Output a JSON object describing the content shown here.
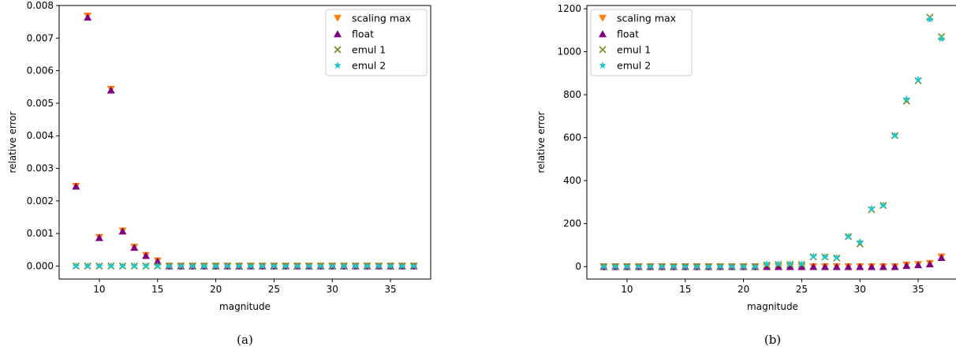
{
  "colors": {
    "scaling max": "#ff7f0e",
    "float": "#800080",
    "emul 1": "#6b8e23",
    "emul 2": "#1cc8cc"
  },
  "markers": {
    "scaling max": "triangle-down",
    "float": "triangle-up",
    "emul 1": "x",
    "emul 2": "star"
  },
  "chart_data": [
    {
      "type": "scatter",
      "caption": "(a)",
      "xlabel": "magnitude",
      "ylabel": "relative error",
      "xlim": [
        6.55,
        38.45
      ],
      "ylim": [
        -0.0004,
        0.008
      ],
      "xticks": [
        10,
        15,
        20,
        25,
        30,
        35
      ],
      "yticks": [
        0.0,
        0.001,
        0.002,
        0.003,
        0.004,
        0.005,
        0.006,
        0.007,
        0.008
      ],
      "ytick_labels": [
        "0.000",
        "0.001",
        "0.002",
        "0.003",
        "0.004",
        "0.005",
        "0.006",
        "0.007",
        "0.008"
      ],
      "legend_position": "top-right",
      "grid": false,
      "x": [
        8,
        9,
        10,
        11,
        12,
        13,
        14,
        15,
        16,
        17,
        18,
        19,
        20,
        21,
        22,
        23,
        24,
        25,
        26,
        27,
        28,
        29,
        30,
        31,
        32,
        33,
        34,
        35,
        36,
        37
      ],
      "series": [
        {
          "name": "scaling max",
          "values": [
            0.00245,
            0.00768,
            0.00088,
            0.00543,
            0.00108,
            0.00058,
            0.00033,
            0.00016,
            0,
            0,
            0,
            0,
            0,
            0,
            0,
            0,
            0,
            0,
            0,
            0,
            0,
            0,
            0,
            0,
            0,
            0,
            0,
            0,
            0,
            0
          ]
        },
        {
          "name": "float",
          "values": [
            0.00245,
            0.00764,
            0.00087,
            0.0054,
            0.00107,
            0.00057,
            0.00032,
            0.00015,
            0,
            0,
            0,
            0,
            0,
            0,
            0,
            0,
            0,
            0,
            0,
            0,
            0,
            0,
            0,
            0,
            0,
            0,
            0,
            0,
            0,
            0
          ]
        },
        {
          "name": "emul 1",
          "values": [
            0,
            0,
            0,
            0,
            0,
            0,
            0,
            0,
            0,
            0,
            0,
            0,
            0,
            0,
            0,
            0,
            0,
            0,
            0,
            0,
            0,
            0,
            0,
            0,
            0,
            0,
            0,
            0,
            0,
            0
          ]
        },
        {
          "name": "emul 2",
          "values": [
            0,
            0,
            0,
            0,
            0,
            0,
            0,
            0,
            0,
            0,
            0,
            0,
            0,
            0,
            0,
            0,
            0,
            0,
            0,
            0,
            0,
            0,
            0,
            0,
            0,
            0,
            0,
            0,
            0,
            0
          ]
        }
      ]
    },
    {
      "type": "scatter",
      "caption": "(b)",
      "xlabel": "magnitude",
      "ylabel": "relative error",
      "xlim": [
        6.55,
        38.45
      ],
      "ylim": [
        -58,
        1215
      ],
      "xticks": [
        10,
        15,
        20,
        25,
        30,
        35
      ],
      "yticks": [
        0,
        200,
        400,
        600,
        800,
        1000,
        1200
      ],
      "ytick_labels": [
        "0",
        "200",
        "400",
        "600",
        "800",
        "1000",
        "1200"
      ],
      "legend_position": "top-left",
      "grid": false,
      "x": [
        8,
        9,
        10,
        11,
        12,
        13,
        14,
        15,
        16,
        17,
        18,
        19,
        20,
        21,
        22,
        23,
        24,
        25,
        26,
        27,
        28,
        29,
        30,
        31,
        32,
        33,
        34,
        35,
        36,
        37
      ],
      "series": [
        {
          "name": "scaling max",
          "values": [
            0,
            0,
            0,
            0,
            0,
            0,
            0,
            0,
            0,
            0,
            0,
            0,
            0,
            0,
            0,
            0,
            0,
            0,
            0,
            0,
            0,
            0,
            0,
            0,
            0,
            0,
            8,
            10,
            15,
            45
          ]
        },
        {
          "name": "float",
          "values": [
            0,
            0,
            0,
            0,
            0,
            0,
            0,
            0,
            0,
            0,
            0,
            0,
            0,
            0,
            0,
            0,
            0,
            0,
            0,
            0,
            0,
            0,
            0,
            0,
            0,
            0,
            5,
            8,
            12,
            42
          ]
        },
        {
          "name": "emul 1",
          "values": [
            0,
            0,
            0,
            0,
            0,
            0,
            0,
            0,
            0,
            0,
            0,
            0,
            0,
            0,
            8,
            10,
            10,
            10,
            45,
            45,
            40,
            140,
            105,
            265,
            285,
            610,
            770,
            865,
            1160,
            1070
          ]
        },
        {
          "name": "emul 2",
          "values": [
            0,
            0,
            0,
            0,
            0,
            0,
            0,
            0,
            0,
            0,
            0,
            0,
            0,
            0,
            12,
            12,
            12,
            12,
            48,
            45,
            42,
            140,
            115,
            270,
            285,
            610,
            780,
            870,
            1150,
            1060
          ]
        }
      ]
    }
  ]
}
